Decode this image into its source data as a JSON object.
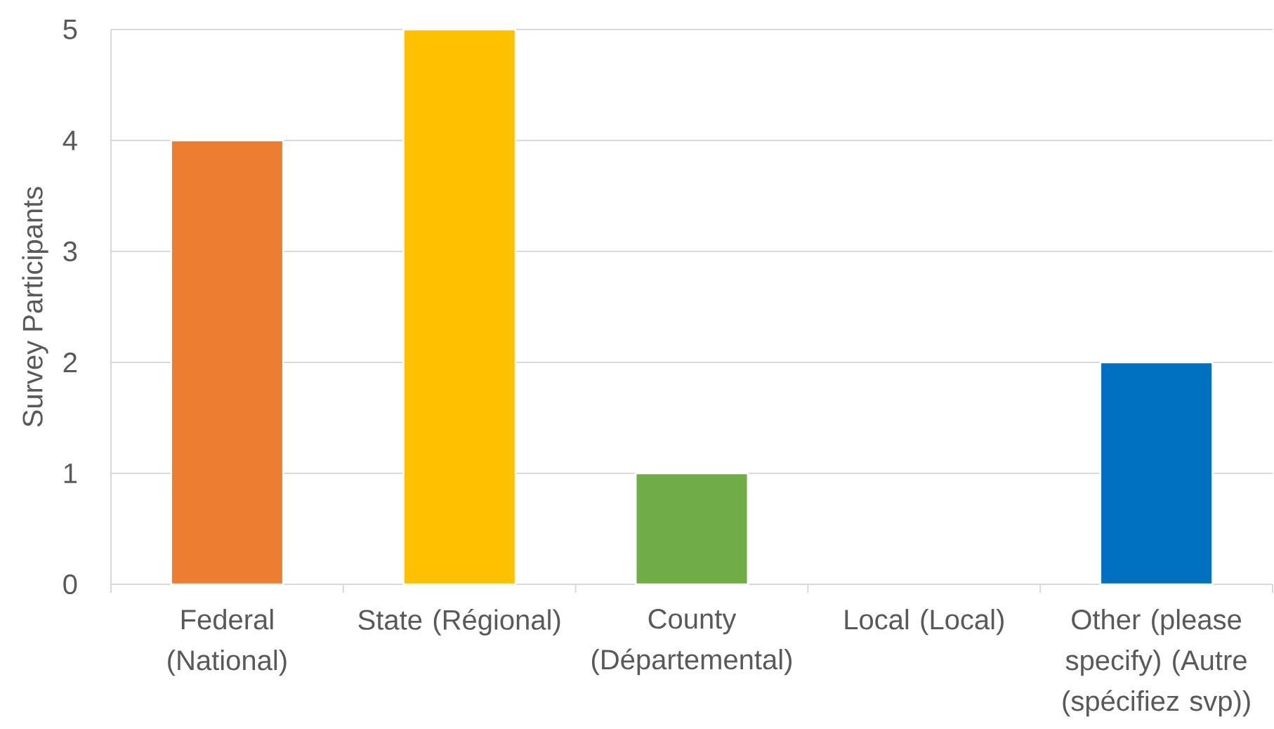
{
  "chart_data": {
    "type": "bar",
    "ylabel": "Survey Participants",
    "categories": [
      "Federal (National)",
      "State (Régional)",
      "County (Départemental)",
      "Local (Local)",
      "Other (please specify)  (Autre (spécifiez svp))"
    ],
    "values": [
      4,
      5,
      1,
      0,
      2
    ],
    "colors": [
      "#ed7d31",
      "#ffc000",
      "#70ad47",
      null,
      "#0070c0"
    ],
    "ylim": [
      0,
      5
    ],
    "yticks": [
      0,
      1,
      2,
      3,
      4,
      5
    ],
    "grid": "y"
  }
}
